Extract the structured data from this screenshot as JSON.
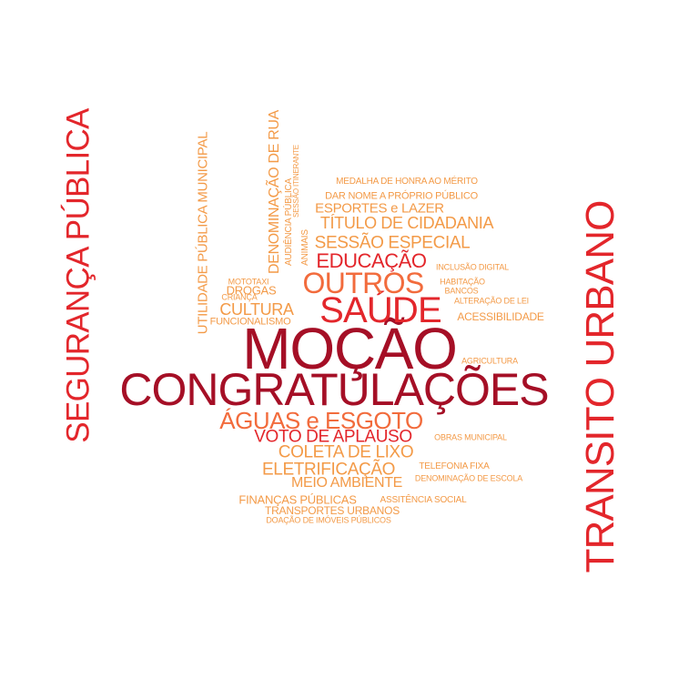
{
  "words": [
    {
      "key": "mocao",
      "text": "MOÇÃO",
      "tone": "dark"
    },
    {
      "key": "congratulacoes",
      "text": "CONGRATULAÇÕES",
      "tone": "dark"
    },
    {
      "key": "seguranca_publica",
      "text": "SEGURANÇA PÚBLICA",
      "tone": "red"
    },
    {
      "key": "transito_urbano",
      "text": "TRANSITO URBANO",
      "tone": "red"
    },
    {
      "key": "saude",
      "text": "SAÚDE",
      "tone": "red"
    },
    {
      "key": "outros",
      "text": "OUTROS",
      "tone": "orange"
    },
    {
      "key": "aguas_esgoto",
      "text": "ÁGUAS e ESGOTO",
      "tone": "orange"
    },
    {
      "key": "educacao",
      "text": "EDUCAÇÃO",
      "tone": "red"
    },
    {
      "key": "sessao_especial",
      "text": "SESSÃO ESPECIAL",
      "tone": "light"
    },
    {
      "key": "titulo_cidadania",
      "text": "TÍTULO DE CIDADANIA",
      "tone": "light"
    },
    {
      "key": "esportes_lazer",
      "text": "ESPORTES e LAZER",
      "tone": "light"
    },
    {
      "key": "dar_nome",
      "text": "DAR NOME A PRÓPRIO PÚBLICO",
      "tone": "light"
    },
    {
      "key": "medalha",
      "text": "MEDALHA DE HONRA AO MÉRITO",
      "tone": "light"
    },
    {
      "key": "voto_aplauso",
      "text": "VOTO DE APLAUSO",
      "tone": "red"
    },
    {
      "key": "coleta_lixo",
      "text": "COLETA DE LIXO",
      "tone": "light"
    },
    {
      "key": "eletrificacao",
      "text": "ELETRIFICAÇÃO",
      "tone": "light"
    },
    {
      "key": "meio_ambiente",
      "text": "MEIO AMBIENTE",
      "tone": "light"
    },
    {
      "key": "cultura",
      "text": "CULTURA",
      "tone": "light"
    },
    {
      "key": "drogas",
      "text": "DROGAS",
      "tone": "light"
    },
    {
      "key": "mototaxi",
      "text": "MOTOTAXI",
      "tone": "light"
    },
    {
      "key": "crianca",
      "text": "CRIANÇA",
      "tone": "light"
    },
    {
      "key": "funcionalismo",
      "text": "FUNCIONALISMO",
      "tone": "light"
    },
    {
      "key": "utilidade_publica",
      "text": "UTILIDADE PÚBLICA MUNICIPAL",
      "tone": "light"
    },
    {
      "key": "denominacao_rua",
      "text": "DENOMINAÇÃO DE RUA",
      "tone": "light"
    },
    {
      "key": "audiencia_publica",
      "text": "AUDIÊNCIA PÚBLICA",
      "tone": "light"
    },
    {
      "key": "sessao_itinerante",
      "text": "SESSÃO ITINERANTE",
      "tone": "light"
    },
    {
      "key": "animais",
      "text": "ANIMAIS",
      "tone": "light"
    },
    {
      "key": "inclusao_digital",
      "text": "INCLUSÃO DIGITAL",
      "tone": "light"
    },
    {
      "key": "habitacao",
      "text": "HABITAÇÃO",
      "tone": "light"
    },
    {
      "key": "bancos",
      "text": "BANCOS",
      "tone": "light"
    },
    {
      "key": "alteracao_lei",
      "text": "ALTERAÇÃO DE LEI",
      "tone": "light"
    },
    {
      "key": "acessibilidade",
      "text": "ACESSIBILIDADE",
      "tone": "light"
    },
    {
      "key": "agricultura",
      "text": "AGRICULTURA",
      "tone": "light"
    },
    {
      "key": "obras_municipal",
      "text": "OBRAS MUNICIPAL",
      "tone": "light"
    },
    {
      "key": "telefonia_fixa",
      "text": "TELEFONIA FIXA",
      "tone": "light"
    },
    {
      "key": "denominacao_escola",
      "text": "DENOMINAÇÃO DE ESCOLA",
      "tone": "light"
    },
    {
      "key": "financas_publicas",
      "text": "FINANÇAS PÚBLICAS",
      "tone": "light"
    },
    {
      "key": "assistencia_social",
      "text": "ASSITÊNCIA SOCIAL",
      "tone": "light"
    },
    {
      "key": "transportes_urbanos",
      "text": "TRANSPORTES URBANOS",
      "tone": "light"
    },
    {
      "key": "doacao_imoveis",
      "text": "DOAÇÃO DE IMÓVEIS  PÚBLICOS",
      "tone": "light"
    }
  ]
}
